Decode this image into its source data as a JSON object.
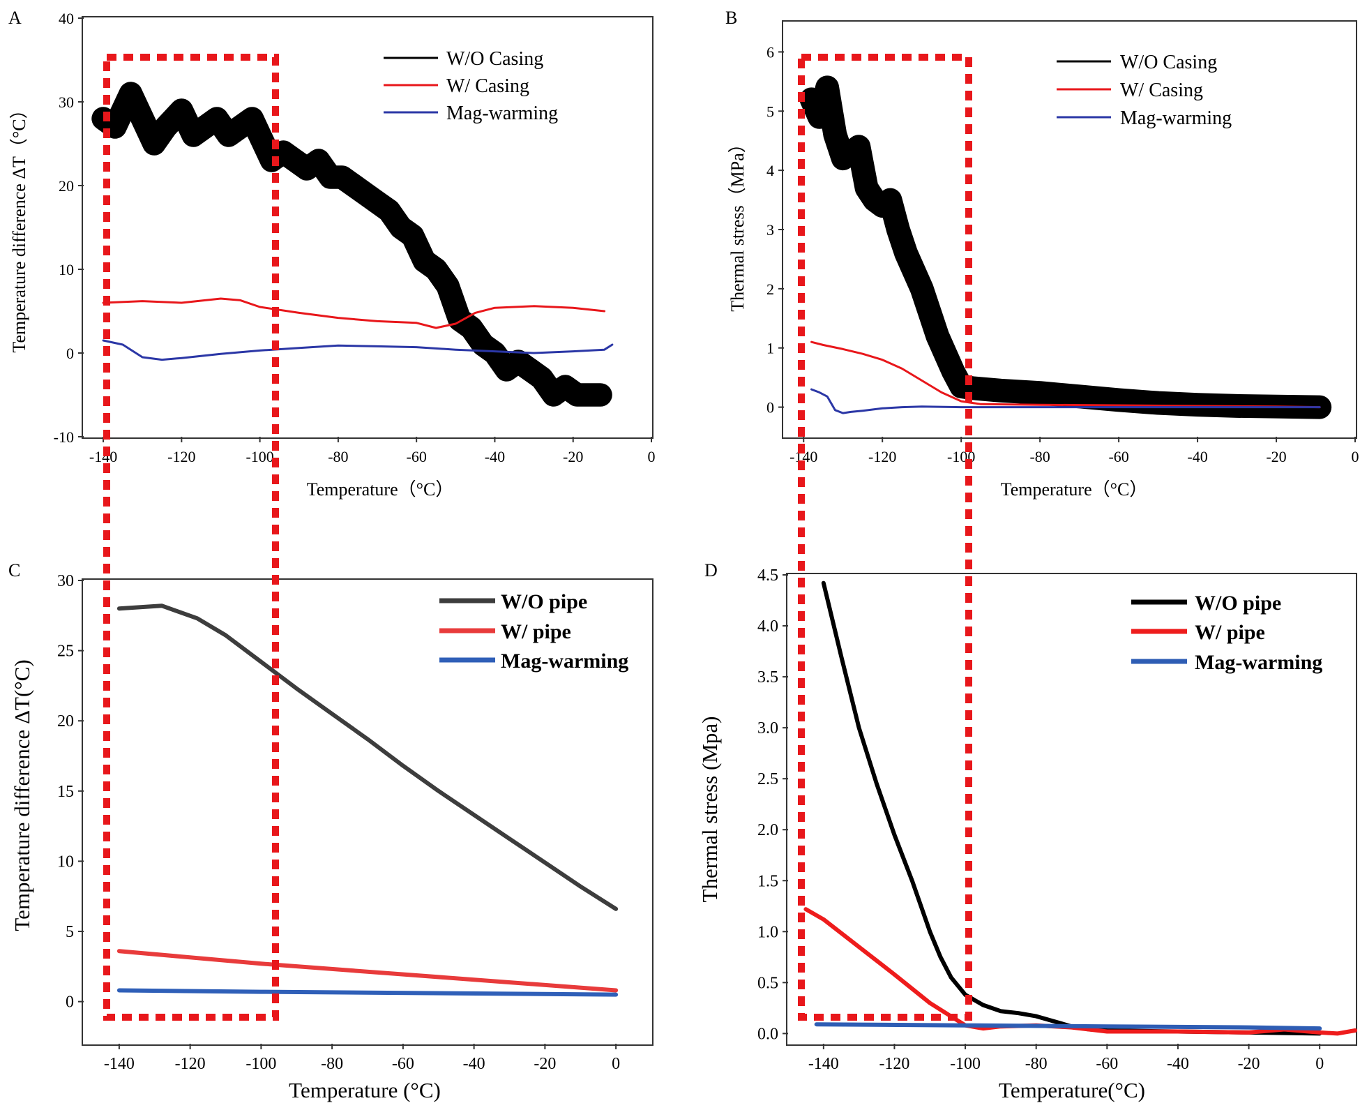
{
  "chart_data": [
    {
      "panel": "A",
      "type": "line",
      "xlabel": "Temperature（°C）",
      "ylabel": "Temperature difference ΔT（°C）",
      "xlim": [
        -145,
        0
      ],
      "ylim": [
        -10,
        40
      ],
      "xticks": [
        -140,
        -120,
        -100,
        -80,
        -60,
        -40,
        -20,
        0
      ],
      "yticks": [
        -10,
        0,
        10,
        20,
        30,
        40
      ],
      "band_width": 2.8,
      "series": [
        {
          "name": "W/O Casing",
          "color": "#000000",
          "noisy": true,
          "x": [
            -140,
            -137,
            -133,
            -130,
            -127,
            -124,
            -120,
            -117,
            -114,
            -111,
            -108,
            -105,
            -102,
            -100,
            -97,
            -94,
            -91,
            -88,
            -85,
            -82,
            -79,
            -76,
            -73,
            -70,
            -67,
            -64,
            -61,
            -58,
            -55,
            -52,
            -49,
            -46,
            -43,
            -40,
            -37,
            -34,
            -31,
            -28,
            -25,
            -22,
            -19,
            -16,
            -13
          ],
          "y": [
            28,
            27,
            31,
            28,
            25,
            27,
            29,
            26,
            27,
            28,
            26,
            27,
            28,
            26,
            23,
            24,
            23,
            22,
            23,
            21,
            21,
            20,
            19,
            18,
            17,
            15,
            14,
            11,
            10,
            8,
            4,
            3,
            1,
            0,
            -2,
            -1,
            -2,
            -3,
            -5,
            -4,
            -5,
            -5,
            -5
          ]
        },
        {
          "name": "W/ Casing",
          "color": "#e8171b",
          "noisy": false,
          "x": [
            -140,
            -130,
            -120,
            -110,
            -105,
            -100,
            -90,
            -80,
            -70,
            -60,
            -55,
            -50,
            -45,
            -40,
            -30,
            -20,
            -12
          ],
          "y": [
            6,
            6.2,
            6,
            6.5,
            6.3,
            5.5,
            4.8,
            4.2,
            3.8,
            3.6,
            3,
            3.5,
            4.8,
            5.4,
            5.6,
            5.4,
            5
          ]
        },
        {
          "name": "Mag-warming",
          "color": "#2b37a6",
          "noisy": false,
          "x": [
            -140,
            -135,
            -130,
            -125,
            -120,
            -110,
            -100,
            -90,
            -80,
            -70,
            -60,
            -50,
            -40,
            -30,
            -20,
            -12,
            -10
          ],
          "y": [
            1.5,
            1,
            -0.5,
            -0.8,
            -0.6,
            -0.1,
            0.3,
            0.6,
            0.9,
            0.8,
            0.7,
            0.4,
            0.2,
            0,
            0.2,
            0.4,
            1
          ]
        }
      ]
    },
    {
      "panel": "B",
      "type": "line",
      "xlabel": "Temperature（°C）",
      "ylabel": "Thermal stress（MPa）",
      "xlim": [
        -145,
        0
      ],
      "ylim": [
        -0.5,
        6.5
      ],
      "xticks": [
        -140,
        -120,
        -100,
        -80,
        -60,
        -40,
        -20,
        0
      ],
      "yticks": [
        0,
        1,
        2,
        3,
        4,
        5,
        6
      ],
      "band_width": 0.4,
      "series": [
        {
          "name": "W/O Casing",
          "color": "#000000",
          "noisy": true,
          "x": [
            -138,
            -136,
            -134,
            -132,
            -130,
            -128,
            -126,
            -124,
            -122,
            -120,
            -118,
            -116,
            -114,
            -112,
            -110,
            -108,
            -106,
            -104,
            -102,
            -100,
            -97,
            -90,
            -80,
            -70,
            -60,
            -50,
            -40,
            -30,
            -20,
            -9
          ],
          "y": [
            5.2,
            4.9,
            5.4,
            4.6,
            4.2,
            4.3,
            4.4,
            3.7,
            3.5,
            3.4,
            3.5,
            3.0,
            2.6,
            2.3,
            2.0,
            1.6,
            1.2,
            0.9,
            0.6,
            0.35,
            0.32,
            0.28,
            0.24,
            0.18,
            0.12,
            0.07,
            0.04,
            0.02,
            0.01,
            0
          ]
        },
        {
          "name": "W/ Casing",
          "color": "#e8171b",
          "noisy": false,
          "x": [
            -138,
            -135,
            -130,
            -125,
            -120,
            -115,
            -110,
            -105,
            -100,
            -95,
            -80,
            -60,
            -40,
            -20,
            -9
          ],
          "y": [
            1.1,
            1.05,
            0.98,
            0.9,
            0.8,
            0.65,
            0.45,
            0.25,
            0.1,
            0.05,
            0.04,
            0.03,
            0.02,
            0.01,
            0
          ]
        },
        {
          "name": "Mag-warming",
          "color": "#2b37a6",
          "noisy": false,
          "x": [
            -138,
            -136,
            -134,
            -132,
            -130,
            -128,
            -125,
            -120,
            -115,
            -110,
            -100,
            -80,
            -60,
            -40,
            -20,
            -9
          ],
          "y": [
            0.3,
            0.25,
            0.18,
            -0.05,
            -0.1,
            -0.08,
            -0.06,
            -0.02,
            0,
            0.01,
            0,
            0,
            0,
            0,
            0,
            0
          ]
        }
      ]
    },
    {
      "panel": "C",
      "type": "line",
      "xlabel": "Temperature (°C)",
      "ylabel": "Temperature difference ΔT(°C)",
      "xlim": [
        -150,
        10
      ],
      "ylim": [
        -3,
        30
      ],
      "xticks": [
        -140,
        -120,
        -100,
        -80,
        -60,
        -40,
        -20,
        0
      ],
      "yticks": [
        0,
        5,
        10,
        15,
        20,
        25,
        30
      ],
      "series": [
        {
          "name": "W/O pipe",
          "color": "#3d3d3d",
          "x": [
            -140,
            -128,
            -118,
            -110,
            -100,
            -90,
            -80,
            -70,
            -60,
            -50,
            -40,
            -30,
            -20,
            -10,
            0
          ],
          "y": [
            28,
            28.2,
            27.3,
            26.1,
            24.2,
            22.3,
            20.5,
            18.7,
            16.8,
            15,
            13.3,
            11.6,
            9.9,
            8.2,
            6.6
          ]
        },
        {
          "name": "W/ pipe",
          "color": "#e83b3b",
          "x": [
            -140,
            -100,
            0
          ],
          "y": [
            3.6,
            2.7,
            0.8
          ]
        },
        {
          "name": "Mag-warming",
          "color": "#2f5fb8",
          "x": [
            -140,
            -100,
            0
          ],
          "y": [
            0.8,
            0.7,
            0.5
          ]
        }
      ]
    },
    {
      "panel": "D",
      "type": "line",
      "xlabel": "Temperature(°C)",
      "ylabel": "Thermal stress (Mpa)",
      "xlim": [
        -150,
        10
      ],
      "ylim": [
        -0.1,
        4.5
      ],
      "xticks": [
        -140,
        -120,
        -100,
        -80,
        -60,
        -40,
        -20,
        0
      ],
      "yticks": [
        0.0,
        0.5,
        1.0,
        1.5,
        2.0,
        2.5,
        3.0,
        3.5,
        4.0,
        4.5
      ],
      "series": [
        {
          "name": "W/O pipe",
          "color": "#000000",
          "x": [
            -140,
            -135,
            -130,
            -125,
            -120,
            -115,
            -110,
            -107,
            -104,
            -100,
            -95,
            -90,
            -85,
            -80,
            -75,
            -70,
            -65,
            -60,
            -40,
            -20,
            0
          ],
          "y": [
            4.42,
            3.7,
            3.0,
            2.45,
            1.95,
            1.5,
            1.0,
            0.75,
            0.55,
            0.38,
            0.28,
            0.22,
            0.2,
            0.17,
            0.12,
            0.07,
            0.04,
            0.03,
            0.02,
            0.01,
            0
          ]
        },
        {
          "name": "W/ pipe",
          "color": "#ee1c1c",
          "x": [
            -145,
            -140,
            -130,
            -120,
            -110,
            -100,
            -95,
            -90,
            -80,
            -70,
            -60,
            -40,
            -20,
            -10,
            0,
            5,
            10
          ],
          "y": [
            1.22,
            1.12,
            0.85,
            0.58,
            0.3,
            0.08,
            0.05,
            0.07,
            0.08,
            0.06,
            0.02,
            0.02,
            0.01,
            0.04,
            0.01,
            0.0,
            0.03
          ]
        },
        {
          "name": "Mag-warming",
          "color": "#2e5db4",
          "x": [
            -142,
            -100,
            -60,
            -20,
            0
          ],
          "y": [
            0.09,
            0.08,
            0.07,
            0.06,
            0.05
          ]
        }
      ]
    }
  ]
}
